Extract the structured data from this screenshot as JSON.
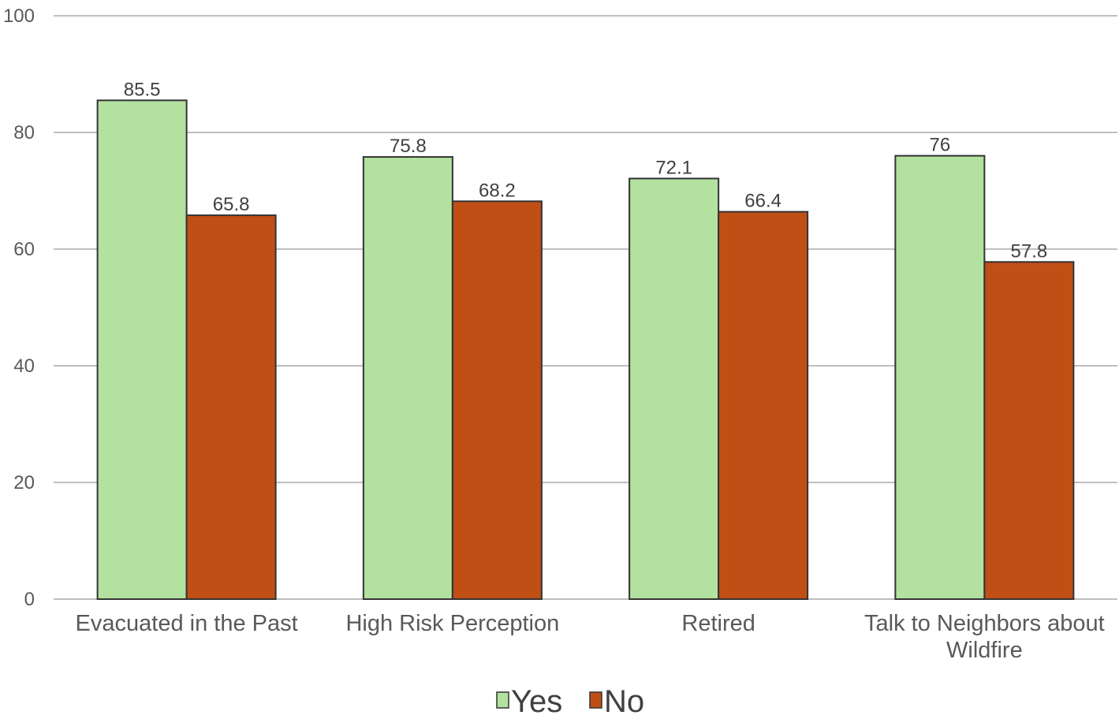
{
  "chart_data": {
    "type": "bar",
    "categories": [
      [
        "Evacuated in the Past"
      ],
      [
        "High Risk Perception"
      ],
      [
        "Retired"
      ],
      [
        "Talk to Neighbors about",
        "Wildfire"
      ]
    ],
    "series": [
      {
        "name": "Yes",
        "values": [
          85.5,
          75.8,
          72.1,
          76
        ],
        "labels": [
          "85.5",
          "75.8",
          "72.1",
          "76"
        ],
        "color": "#b3e2a0"
      },
      {
        "name": "No",
        "values": [
          65.8,
          68.2,
          66.4,
          57.8
        ],
        "labels": [
          "65.8",
          "68.2",
          "66.4",
          "57.8"
        ],
        "color": "#c04f15"
      }
    ],
    "ylim": [
      0,
      100
    ],
    "yticks": [
      "0",
      "20",
      "40",
      "60",
      "80",
      "100"
    ],
    "grid": true,
    "legend_position": "bottom",
    "gridline_color": "#bfbfbf",
    "bar_outline_color": "#333333"
  }
}
